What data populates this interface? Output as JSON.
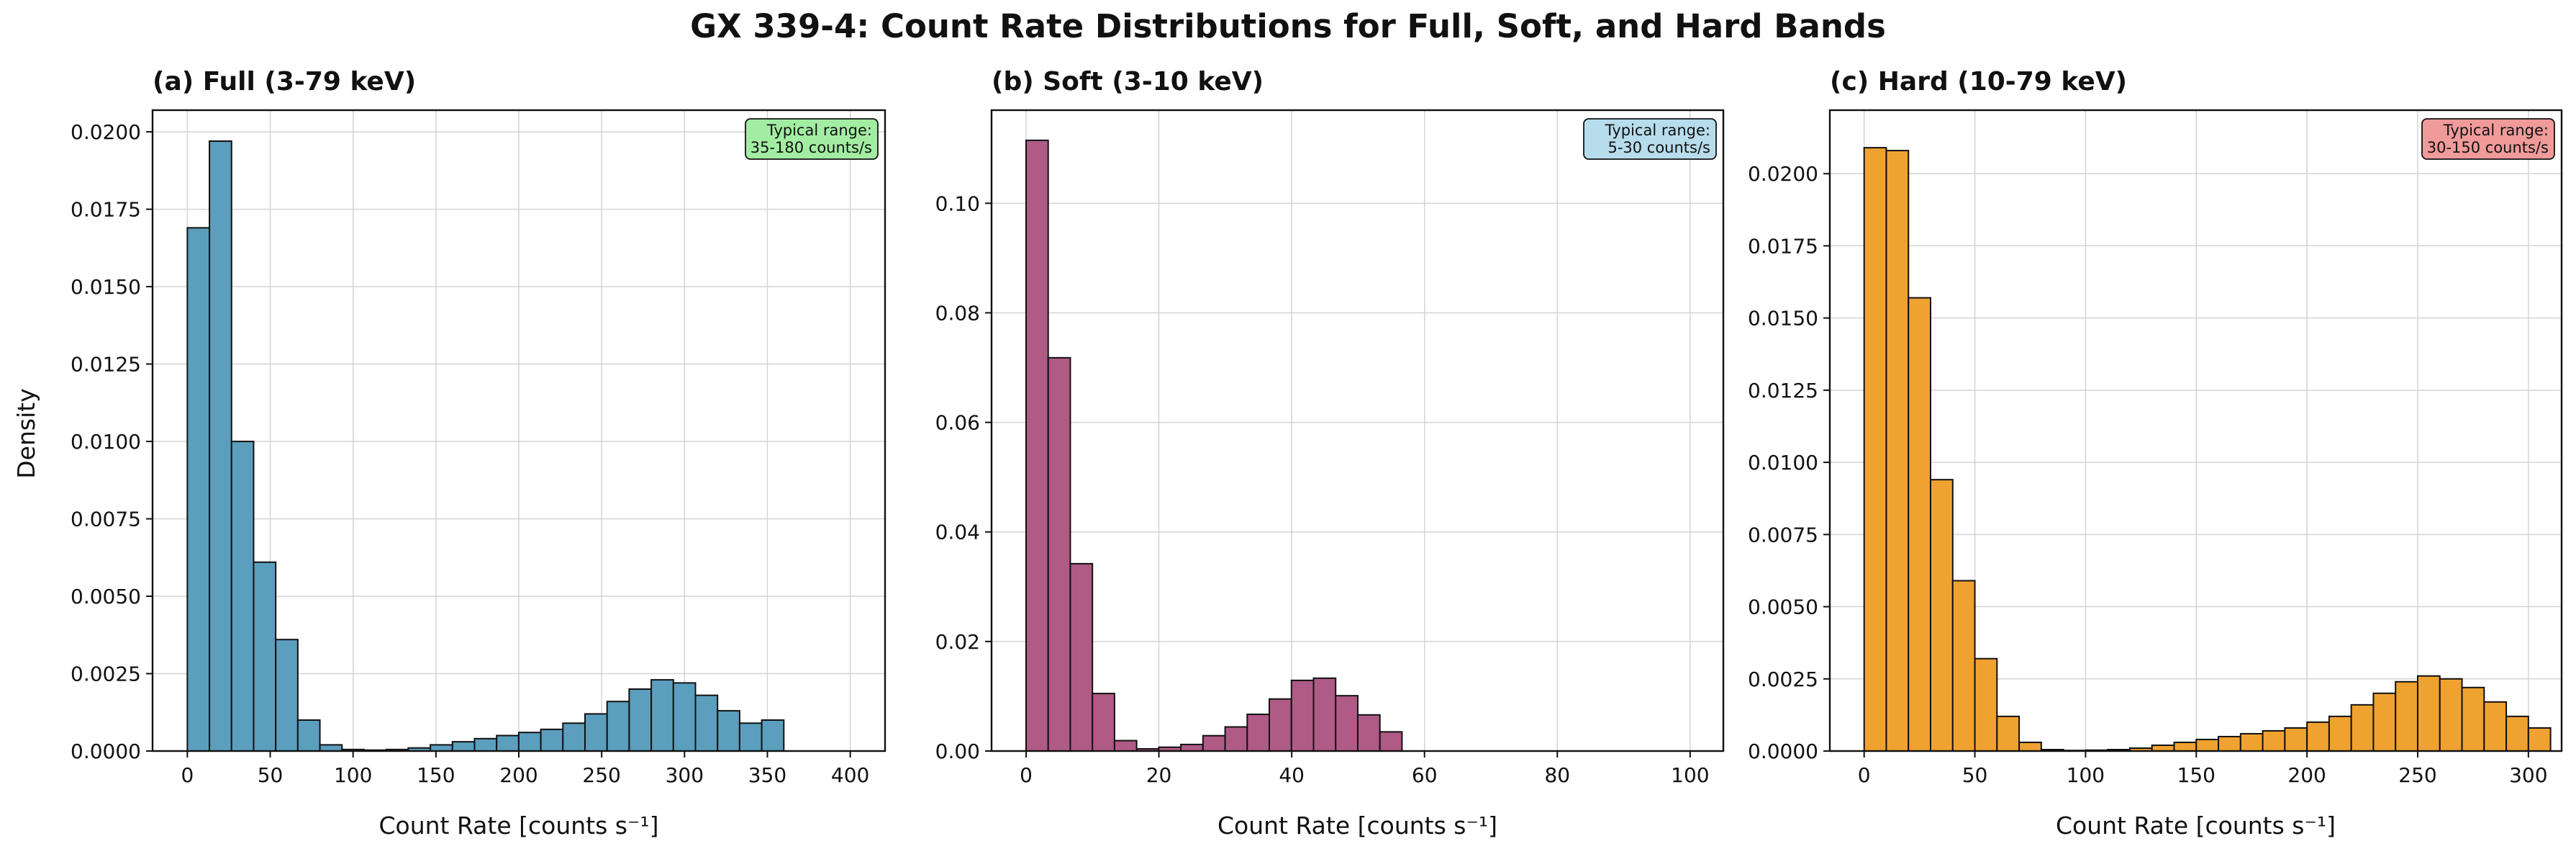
{
  "figure": {
    "title": "GX 339-4: Count Rate Distributions for Full, Soft, and Hard Bands",
    "shared_ylabel": "Density"
  },
  "chart_data": [
    {
      "type": "bar",
      "title": "(a) Full (3-79 keV)",
      "xlabel": "Count Rate [counts s⁻¹]",
      "ylabel": "Density",
      "xlim": [
        -21,
        421
      ],
      "ylim": [
        0,
        0.0207
      ],
      "xticks": [
        0,
        50,
        100,
        150,
        200,
        250,
        300,
        350,
        400
      ],
      "xtick_labels": [
        "0",
        "50",
        "100",
        "150",
        "200",
        "250",
        "300",
        "350",
        "400"
      ],
      "yticks": [
        0,
        0.0025,
        0.005,
        0.0075,
        0.01,
        0.0125,
        0.015,
        0.0175,
        0.02
      ],
      "ytick_labels": [
        "0.0000",
        "0.0025",
        "0.0050",
        "0.0075",
        "0.0100",
        "0.0125",
        "0.0150",
        "0.0175",
        "0.0200"
      ],
      "bin_start": 0,
      "bin_width": 13.33,
      "values": [
        0.0169,
        0.0197,
        0.01,
        0.0061,
        0.0036,
        0.001,
        0.0002,
        5e-05,
        3e-05,
        5e-05,
        0.0001,
        0.0002,
        0.0003,
        0.0004,
        0.0005,
        0.0006,
        0.0007,
        0.0009,
        0.0012,
        0.0016,
        0.002,
        0.0023,
        0.0022,
        0.0018,
        0.0013,
        0.0009,
        0.001
      ],
      "bar_color": "#5b9ebd",
      "annotation": {
        "line1": "Typical range:",
        "line2": "35-180 counts/s",
        "color": "#a3eda3"
      },
      "grid": true
    },
    {
      "type": "bar",
      "title": "(b) Soft (3-10 keV)",
      "xlabel": "Count Rate [counts s⁻¹]",
      "ylabel": "",
      "xlim": [
        -5.2,
        105
      ],
      "ylim": [
        0,
        0.117
      ],
      "xticks": [
        0,
        20,
        40,
        60,
        80,
        100
      ],
      "xtick_labels": [
        "0",
        "20",
        "40",
        "60",
        "80",
        "100"
      ],
      "yticks": [
        0,
        0.02,
        0.04,
        0.06,
        0.08,
        0.1
      ],
      "ytick_labels": [
        "0.00",
        "0.02",
        "0.04",
        "0.06",
        "0.08",
        "0.10"
      ],
      "bin_start": 0,
      "bin_width": 3.33,
      "values": [
        0.1115,
        0.0718,
        0.0342,
        0.0105,
        0.0019,
        0.0004,
        0.0007,
        0.0012,
        0.0028,
        0.0044,
        0.0067,
        0.0095,
        0.0129,
        0.0133,
        0.0101,
        0.0066,
        0.0035
      ],
      "bar_color": "#b05a86",
      "annotation": {
        "line1": "Typical range:",
        "line2": "5-30 counts/s",
        "color": "#b7dcec"
      },
      "grid": true
    },
    {
      "type": "bar",
      "title": "(c) Hard (10-79 keV)",
      "xlabel": "Count Rate [counts s⁻¹]",
      "ylabel": "",
      "xlim": [
        -15.5,
        315
      ],
      "ylim": [
        0,
        0.0222
      ],
      "xticks": [
        0,
        50,
        100,
        150,
        200,
        250,
        300
      ],
      "xtick_labels": [
        "0",
        "50",
        "100",
        "150",
        "200",
        "250",
        "300"
      ],
      "yticks": [
        0,
        0.0025,
        0.005,
        0.0075,
        0.01,
        0.0125,
        0.015,
        0.0175,
        0.02
      ],
      "ytick_labels": [
        "0.0000",
        "0.0025",
        "0.0050",
        "0.0075",
        "0.0100",
        "0.0125",
        "0.0150",
        "0.0175",
        "0.0200"
      ],
      "bin_start": 0,
      "bin_width": 10,
      "values": [
        0.0209,
        0.0208,
        0.0157,
        0.0094,
        0.0059,
        0.0032,
        0.0012,
        0.0003,
        5e-05,
        2e-05,
        3e-05,
        5e-05,
        0.0001,
        0.0002,
        0.0003,
        0.0004,
        0.0005,
        0.0006,
        0.0007,
        0.0008,
        0.001,
        0.0012,
        0.0016,
        0.002,
        0.0024,
        0.0026,
        0.0025,
        0.0022,
        0.0017,
        0.0012,
        0.0008
      ],
      "bar_color": "#f0a231",
      "annotation": {
        "line1": "Typical range:",
        "line2": "30-150 counts/s",
        "color": "#f09a9a"
      },
      "grid": true
    }
  ]
}
